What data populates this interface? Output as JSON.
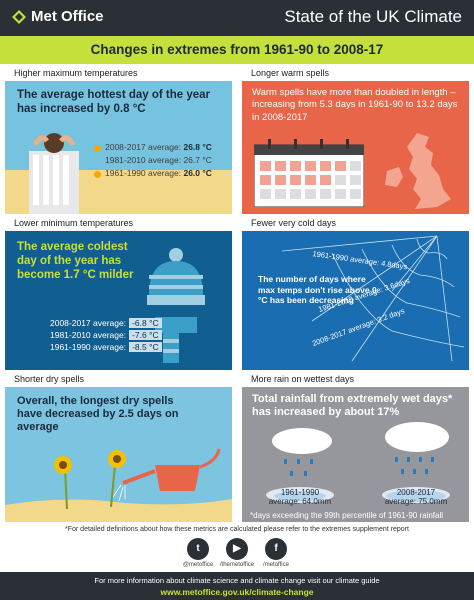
{
  "header": {
    "logo_text": "Met Office",
    "title": "State of the UK Climate"
  },
  "subtitle": "Changes in extremes from 1961-90 to 2008-17",
  "panels": {
    "max_temp": {
      "label": "Higher maximum temperatures",
      "headline": "The average hottest day of the year has increased by 0.8 °C",
      "stats": [
        {
          "text": "2008-2017 average:",
          "value": "26.8 °C"
        },
        {
          "text": "1981-2010 average: 26.7 °C",
          "value": ""
        },
        {
          "text": "1961-1990 average:",
          "value": "26.0 °C"
        }
      ]
    },
    "warm_spells": {
      "label": "Longer warm spells",
      "headline": "Warm spells have more than doubled in length – increasing from 5.3 days in 1961-90 to 13.2 days in 2008-2017"
    },
    "min_temp": {
      "label": "Lower minimum temperatures",
      "headline": "The average coldest day of the year has become 1.7 °C milder",
      "stats": [
        {
          "text": "2008-2017 average:",
          "value": "-6.8 °C"
        },
        {
          "text": "1981-2010 average:",
          "value": "-7.6 °C"
        },
        {
          "text": "1961-1990 average:",
          "value": "-8.5 °C"
        }
      ]
    },
    "cold_days": {
      "label": "Fewer very cold days",
      "text": "The number of days where max temps don't rise above 0 °C has been decreasing",
      "labels": [
        "1961-1990 average: 4.8days",
        "1981-2010 average: 3.6days",
        "2008-2017 average: 3.2 days"
      ]
    },
    "dry_spells": {
      "label": "Shorter dry spells",
      "headline": "Overall, the longest dry spells have decreased by 2.5 days on average"
    },
    "wet_days": {
      "label": "More rain on wettest days",
      "headline": "Total rainfall from extremely wet days* has increased by about 17%",
      "gauges": [
        {
          "period": "1961-1990",
          "amount": "average: 64.0mm"
        },
        {
          "period": "2008-2017",
          "amount": "average: 75.0mm"
        }
      ],
      "footnote": "*days exceeding the 99th percentile of 1961-90 rainfall"
    }
  },
  "footnote": "*For detailed definitions about how these metrics are calculated please refer to the extremes supplement report",
  "social": [
    {
      "glyph": "t",
      "handle": "@metoffice"
    },
    {
      "glyph": "▶",
      "handle": "/themetoffice"
    },
    {
      "glyph": "f",
      "handle": "/metoffice"
    }
  ],
  "bottom": {
    "info": "For more information about climate science and climate change visit our climate guide",
    "url": "www.metoffice.gov.uk/climate-change"
  },
  "colors": {
    "header": "#2b2f36",
    "accent": "#c5e03a",
    "max_temp_bg": "#76c3df",
    "warm_spell_bg": "#e8654a",
    "min_temp_bg": "#115f91",
    "cold_days_bg": "#1b6db1",
    "dry_spell_bg": "#7cc4e0",
    "wet_days_bg": "#96979c"
  }
}
